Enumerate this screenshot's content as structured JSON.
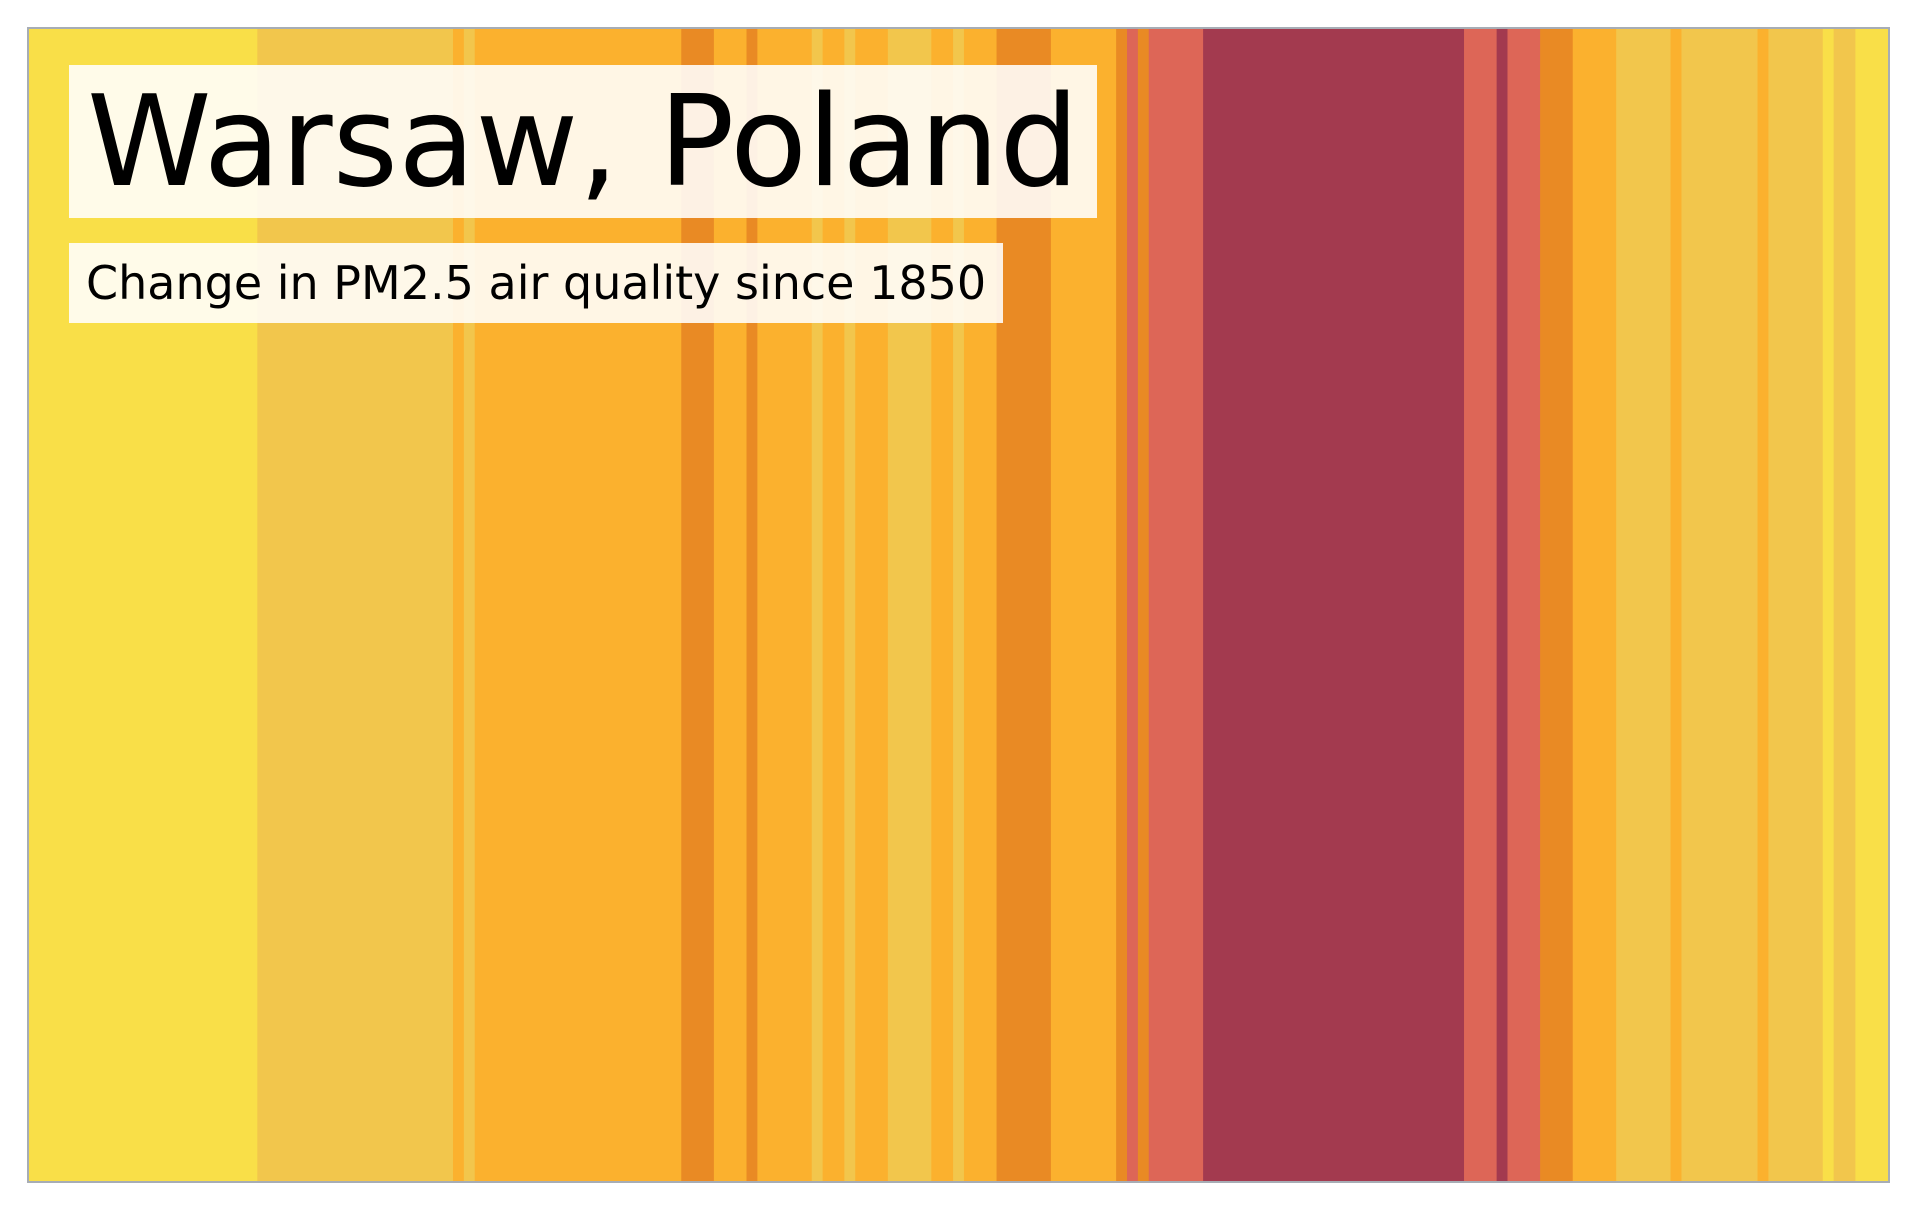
{
  "chart_data": {
    "type": "heatmap",
    "title": "Warsaw, Poland",
    "subtitle": "Change in PM2.5 air quality since 1850",
    "x_start": 1850,
    "x_end": 2021,
    "grid": false,
    "legend": "none",
    "bands": [
      {
        "from": 1850,
        "to": 1871,
        "color": "#f9df48"
      },
      {
        "from": 1871,
        "to": 1889,
        "color": "#f2c64c"
      },
      {
        "from": 1889,
        "to": 1890,
        "color": "#fbb12e"
      },
      {
        "from": 1890,
        "to": 1891,
        "color": "#f2c64c"
      },
      {
        "from": 1891,
        "to": 1893,
        "color": "#fbb12e"
      },
      {
        "from": 1893,
        "to": 1910,
        "color": "#fbb12e"
      },
      {
        "from": 1910,
        "to": 1913,
        "color": "#e98a24"
      },
      {
        "from": 1913,
        "to": 1916,
        "color": "#fbb12e"
      },
      {
        "from": 1916,
        "to": 1917,
        "color": "#e98a24"
      },
      {
        "from": 1917,
        "to": 1922,
        "color": "#fbb12e"
      },
      {
        "from": 1922,
        "to": 1923,
        "color": "#f2c64c"
      },
      {
        "from": 1923,
        "to": 1925,
        "color": "#fbb12e"
      },
      {
        "from": 1925,
        "to": 1926,
        "color": "#f2c64c"
      },
      {
        "from": 1926,
        "to": 1929,
        "color": "#fbb12e"
      },
      {
        "from": 1929,
        "to": 1933,
        "color": "#f2c64c"
      },
      {
        "from": 1933,
        "to": 1935,
        "color": "#fbb12e"
      },
      {
        "from": 1935,
        "to": 1936,
        "color": "#f2c64c"
      },
      {
        "from": 1936,
        "to": 1939,
        "color": "#fbb12e"
      },
      {
        "from": 1939,
        "to": 1944,
        "color": "#e98a24"
      },
      {
        "from": 1944,
        "to": 1950,
        "color": "#fbb12e"
      },
      {
        "from": 1950,
        "to": 1951,
        "color": "#e98a24"
      },
      {
        "from": 1951,
        "to": 1952,
        "color": "#dd6657"
      },
      {
        "from": 1952,
        "to": 1953,
        "color": "#e98a24"
      },
      {
        "from": 1953,
        "to": 1958,
        "color": "#dd6657"
      },
      {
        "from": 1958,
        "to": 1982,
        "color": "#a33a4f"
      },
      {
        "from": 1982,
        "to": 1985,
        "color": "#dd6657"
      },
      {
        "from": 1985,
        "to": 1986,
        "color": "#a33a4f"
      },
      {
        "from": 1986,
        "to": 1989,
        "color": "#dd6657"
      },
      {
        "from": 1989,
        "to": 1992,
        "color": "#e98a24"
      },
      {
        "from": 1992,
        "to": 1996,
        "color": "#fbb12e"
      },
      {
        "from": 1996,
        "to": 2001,
        "color": "#f2c64c"
      },
      {
        "from": 2001,
        "to": 2002,
        "color": "#fbb12e"
      },
      {
        "from": 2002,
        "to": 2009,
        "color": "#f2c64c"
      },
      {
        "from": 2009,
        "to": 2010,
        "color": "#fbb12e"
      },
      {
        "from": 2010,
        "to": 2015,
        "color": "#f2c64c"
      },
      {
        "from": 2015,
        "to": 2016,
        "color": "#f9df48"
      },
      {
        "from": 2016,
        "to": 2018,
        "color": "#f2c64c"
      },
      {
        "from": 2018,
        "to": 2021,
        "color": "#f9df48"
      }
    ]
  }
}
